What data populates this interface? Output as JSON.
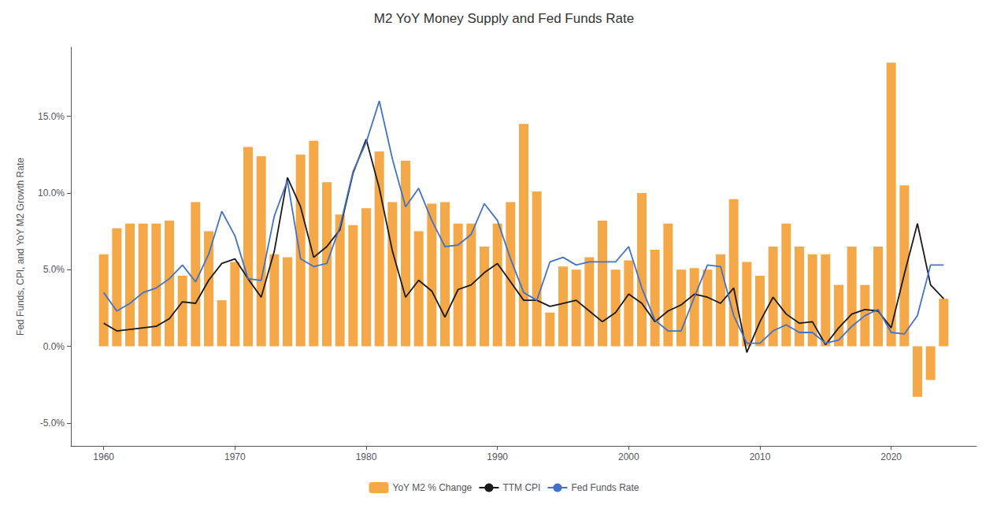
{
  "chart_data": {
    "type": "bar",
    "title": "M2 YoY Money Supply and Fed Funds Rate",
    "ylabel": "Fed Funds, CPI, and YoY M2 Growth Rate",
    "x": [
      1960,
      1961,
      1962,
      1963,
      1964,
      1965,
      1966,
      1967,
      1968,
      1969,
      1970,
      1971,
      1972,
      1973,
      1974,
      1975,
      1976,
      1977,
      1978,
      1979,
      1980,
      1981,
      1982,
      1983,
      1984,
      1985,
      1986,
      1987,
      1988,
      1989,
      1990,
      1991,
      1992,
      1993,
      1994,
      1995,
      1996,
      1997,
      1998,
      1999,
      2000,
      2001,
      2002,
      2003,
      2004,
      2005,
      2006,
      2007,
      2008,
      2009,
      2010,
      2011,
      2012,
      2013,
      2014,
      2015,
      2016,
      2017,
      2018,
      2019,
      2020,
      2021,
      2022,
      2023,
      2024
    ],
    "xlim": [
      1957.5,
      2026.5
    ],
    "xticks": [
      1960,
      1970,
      1980,
      1990,
      2000,
      2010,
      2020
    ],
    "ylim": [
      -0.065,
      0.195
    ],
    "yticks": [
      {
        "value": -0.05,
        "label": "-5.0%"
      },
      {
        "value": 0.0,
        "label": "0.0%"
      },
      {
        "value": 0.05,
        "label": "5.0%"
      },
      {
        "value": 0.1,
        "label": "10.0%"
      },
      {
        "value": 0.15,
        "label": "15.0%"
      }
    ],
    "grid": false,
    "legend": "bottom",
    "series": [
      {
        "name": "YoY M2 % Change",
        "type": "bar",
        "color": "#F5A848",
        "values": [
          0.06,
          0.077,
          0.08,
          0.08,
          0.08,
          0.082,
          0.046,
          0.094,
          0.075,
          0.03,
          0.055,
          0.13,
          0.124,
          0.06,
          0.058,
          0.125,
          0.134,
          0.107,
          0.086,
          0.079,
          0.09,
          0.127,
          0.094,
          0.121,
          0.075,
          0.093,
          0.094,
          0.08,
          0.08,
          0.065,
          0.08,
          0.094,
          0.145,
          0.101,
          0.022,
          0.052,
          0.05,
          0.058,
          0.082,
          0.05,
          0.056,
          0.1,
          0.063,
          0.08,
          0.05,
          0.051,
          0.05,
          0.06,
          0.096,
          0.055,
          0.046,
          0.065,
          0.08,
          0.065,
          0.06,
          0.06,
          0.04,
          0.065,
          0.04,
          0.065,
          0.185,
          0.105,
          -0.033,
          -0.022,
          0.031
        ]
      },
      {
        "name": "TTM CPI",
        "type": "line",
        "color": "#1a1a1a",
        "values": [
          0.015,
          0.01,
          0.011,
          0.012,
          0.013,
          0.018,
          0.029,
          0.028,
          0.043,
          0.054,
          0.057,
          0.044,
          0.032,
          0.062,
          0.11,
          0.091,
          0.058,
          0.065,
          0.076,
          0.113,
          0.135,
          0.103,
          0.062,
          0.032,
          0.043,
          0.036,
          0.019,
          0.037,
          0.04,
          0.048,
          0.054,
          0.042,
          0.03,
          0.03,
          0.026,
          0.028,
          0.03,
          0.023,
          0.016,
          0.022,
          0.034,
          0.028,
          0.016,
          0.023,
          0.027,
          0.034,
          0.032,
          0.028,
          0.038,
          -0.004,
          0.016,
          0.032,
          0.021,
          0.015,
          0.016,
          0.001,
          0.012,
          0.021,
          0.024,
          0.023,
          0.012,
          0.047,
          0.08,
          0.04,
          0.031
        ]
      },
      {
        "name": "Fed Funds Rate",
        "type": "line",
        "color": "#4472C4",
        "values": [
          0.035,
          0.023,
          0.028,
          0.035,
          0.038,
          0.044,
          0.053,
          0.042,
          0.06,
          0.088,
          0.072,
          0.044,
          0.043,
          0.085,
          0.108,
          0.057,
          0.052,
          0.054,
          0.078,
          0.114,
          0.133,
          0.16,
          0.122,
          0.091,
          0.103,
          0.082,
          0.065,
          0.066,
          0.073,
          0.093,
          0.082,
          0.057,
          0.035,
          0.03,
          0.055,
          0.058,
          0.053,
          0.055,
          0.055,
          0.055,
          0.065,
          0.038,
          0.017,
          0.01,
          0.01,
          0.032,
          0.053,
          0.052,
          0.02,
          0.002,
          0.002,
          0.01,
          0.014,
          0.009,
          0.009,
          0.002,
          0.004,
          0.013,
          0.02,
          0.024,
          0.009,
          0.008,
          0.02,
          0.053,
          0.053
        ]
      }
    ]
  }
}
